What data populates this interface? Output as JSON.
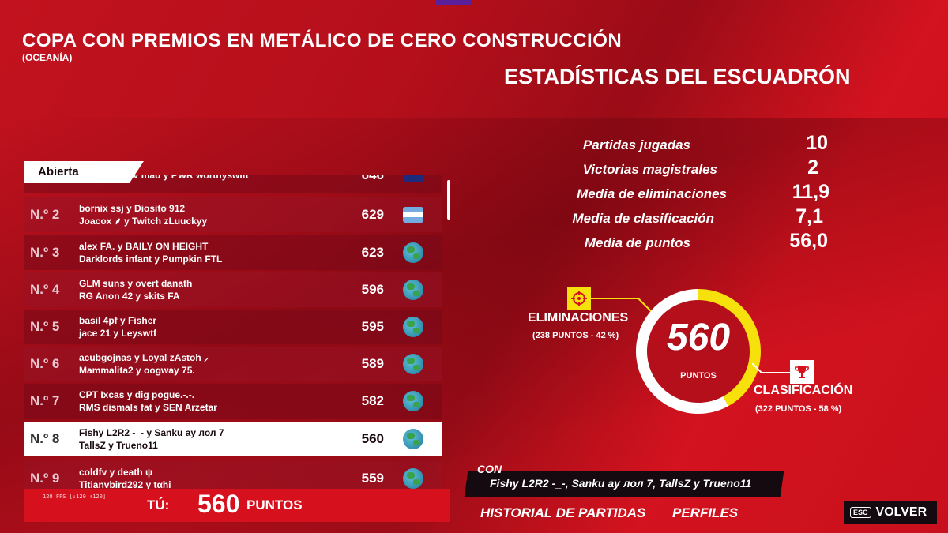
{
  "header": {
    "title": "COPA CON PREMIOS EN METÁLICO DE CERO CONSTRUCCIÓN",
    "region": "(OCEANÍA)"
  },
  "board": {
    "tab_label": "Abierta",
    "rows": [
      {
        "rank": "",
        "names_1": "PWR lyfle lav mau y PWR worthyswift",
        "names_2": "",
        "score": "646",
        "flag": "au"
      },
      {
        "rank": "N.º 2",
        "names_1": "bornix ssj y Diosito 912",
        "names_2": "Joacox ⸙ y Twitch zLuuckyy",
        "score": "629",
        "flag": "ar"
      },
      {
        "rank": "N.º 3",
        "names_1": "alex FA. y BAILY ON HEIGHT",
        "names_2": "Darklords infant y Pumpkin FTL",
        "score": "623",
        "flag": "globe"
      },
      {
        "rank": "N.º 4",
        "names_1": "GLM suns y overt danath",
        "names_2": "RG Anon 42 y skits FA",
        "score": "596",
        "flag": "globe"
      },
      {
        "rank": "N.º 5",
        "names_1": "basil 4pf y Fisher",
        "names_2": "jace 21 y Leyswtf",
        "score": "595",
        "flag": "globe"
      },
      {
        "rank": "N.º 6",
        "names_1": "acubgojnas y Loyal zAstoh ⸝",
        "names_2": "Mammalita2 y oogway 75.",
        "score": "589",
        "flag": "globe"
      },
      {
        "rank": "N.º 7",
        "names_1": "CPT Ixcas y dig pogue.-.-.",
        "names_2": "RMS dismals fat y SEN Arzetar",
        "score": "582",
        "flag": "globe"
      },
      {
        "rank": "N.º 8",
        "names_1": "Fishy L2R2 -_- y Sanku ay лол 7",
        "names_2": "TallsZ y Trueno11",
        "score": "560",
        "flag": "globe"
      },
      {
        "rank": "N.º 9",
        "names_1": "coldfv y death ψ",
        "names_2": "Titianvbird292 y tαhi",
        "score": "559",
        "flag": "globe"
      }
    ],
    "you_label": "TÚ:",
    "you_points": "560",
    "you_unit": "PUNTOS",
    "fps": "120 FPS [↓120 ↑120]"
  },
  "stats": {
    "title": "ESTADÍSTICAS DEL ESCUADRÓN",
    "items": [
      {
        "label": "Partidas jugadas",
        "value": "10"
      },
      {
        "label": "Victorias magistrales",
        "value": "2"
      },
      {
        "label": "Media de eliminaciones",
        "value": "11,9"
      },
      {
        "label": "Media de clasificación",
        "value": "7,1"
      },
      {
        "label": "Media de puntos",
        "value": "56,0"
      }
    ]
  },
  "donut": {
    "total": "560",
    "unit": "PUNTOS",
    "elim_label": "ELIMINACIONES",
    "elim_sub": "(238 PUNTOS - 42 %)",
    "elim_fraction": 0.42,
    "clas_label": "CLASIFICACIÓN",
    "clas_sub": "(322 PUNTOS - 58 %)",
    "colors": {
      "elim": "#f6e10d",
      "clas": "#ffffff"
    }
  },
  "team": {
    "label": "CON",
    "names": "Fishy L2R2 -_-, Sanku ay лол 7, TallsZ y Trueno11"
  },
  "nav": {
    "history": "HISTORIAL DE PARTIDAS",
    "profiles": "PERFILES",
    "esc": "ESC",
    "back": "VOLVER"
  }
}
